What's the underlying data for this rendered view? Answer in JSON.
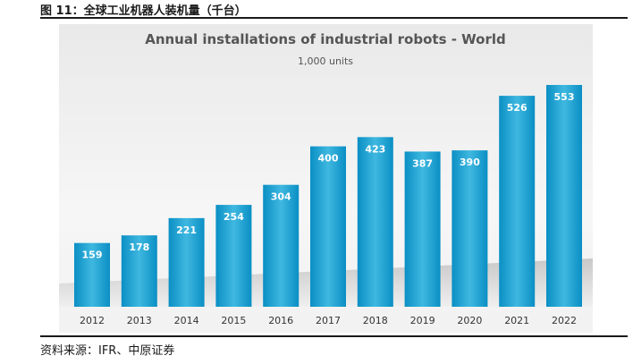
{
  "figure_title": "图 11：全球工业机器人装机量（千台）",
  "source_note": "资料来源：IFR、中原证券",
  "chart_data": {
    "type": "bar",
    "title": "Annual installations of industrial robots - World",
    "subtitle": "1,000 units",
    "categories": [
      "2012",
      "2013",
      "2014",
      "2015",
      "2016",
      "2017",
      "2018",
      "2019",
      "2020",
      "2021",
      "2022"
    ],
    "values": [
      159,
      178,
      221,
      254,
      304,
      400,
      423,
      387,
      390,
      526,
      553
    ],
    "ylim": [
      0,
      553
    ],
    "grid": false,
    "bar_color_top": "#3fb8e0",
    "bar_color_bottom": "#0a8fc4",
    "label_color": "#ffffff"
  }
}
